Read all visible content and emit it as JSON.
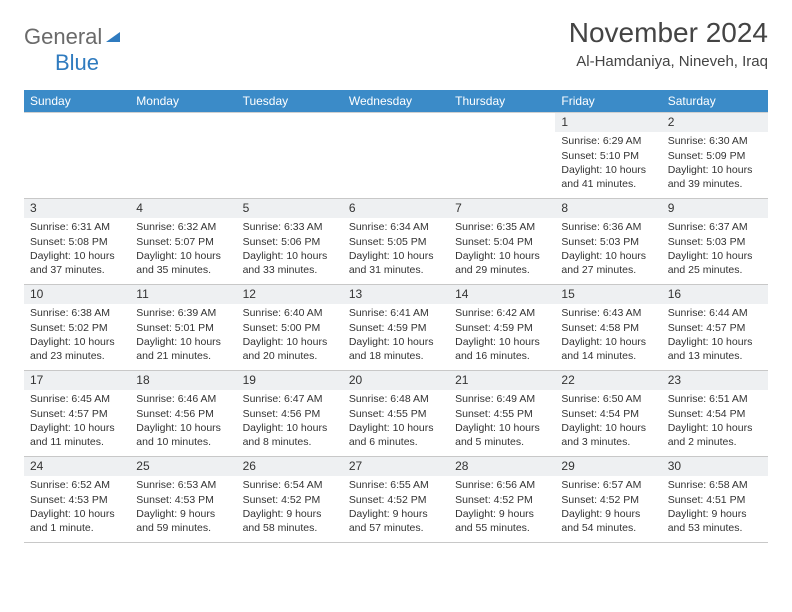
{
  "colors": {
    "header_bg": "#3b8bc8",
    "header_fg": "#ffffff",
    "daynum_bg": "#eef0f2",
    "border": "#c8c8c8",
    "logo_gray": "#6a6a6a",
    "logo_blue": "#2f7bbf",
    "text": "#333333",
    "page_bg": "#ffffff"
  },
  "logo": {
    "part1": "General",
    "part2": "Blue"
  },
  "title": {
    "month": "November 2024",
    "location": "Al-Hamdaniya, Nineveh, Iraq"
  },
  "weekdays": [
    "Sunday",
    "Monday",
    "Tuesday",
    "Wednesday",
    "Thursday",
    "Friday",
    "Saturday"
  ],
  "weeks": [
    [
      {
        "n": "",
        "l1": "",
        "l2": "",
        "l3": "",
        "l4": ""
      },
      {
        "n": "",
        "l1": "",
        "l2": "",
        "l3": "",
        "l4": ""
      },
      {
        "n": "",
        "l1": "",
        "l2": "",
        "l3": "",
        "l4": ""
      },
      {
        "n": "",
        "l1": "",
        "l2": "",
        "l3": "",
        "l4": ""
      },
      {
        "n": "",
        "l1": "",
        "l2": "",
        "l3": "",
        "l4": ""
      },
      {
        "n": "1",
        "l1": "Sunrise: 6:29 AM",
        "l2": "Sunset: 5:10 PM",
        "l3": "Daylight: 10 hours",
        "l4": "and 41 minutes."
      },
      {
        "n": "2",
        "l1": "Sunrise: 6:30 AM",
        "l2": "Sunset: 5:09 PM",
        "l3": "Daylight: 10 hours",
        "l4": "and 39 minutes."
      }
    ],
    [
      {
        "n": "3",
        "l1": "Sunrise: 6:31 AM",
        "l2": "Sunset: 5:08 PM",
        "l3": "Daylight: 10 hours",
        "l4": "and 37 minutes."
      },
      {
        "n": "4",
        "l1": "Sunrise: 6:32 AM",
        "l2": "Sunset: 5:07 PM",
        "l3": "Daylight: 10 hours",
        "l4": "and 35 minutes."
      },
      {
        "n": "5",
        "l1": "Sunrise: 6:33 AM",
        "l2": "Sunset: 5:06 PM",
        "l3": "Daylight: 10 hours",
        "l4": "and 33 minutes."
      },
      {
        "n": "6",
        "l1": "Sunrise: 6:34 AM",
        "l2": "Sunset: 5:05 PM",
        "l3": "Daylight: 10 hours",
        "l4": "and 31 minutes."
      },
      {
        "n": "7",
        "l1": "Sunrise: 6:35 AM",
        "l2": "Sunset: 5:04 PM",
        "l3": "Daylight: 10 hours",
        "l4": "and 29 minutes."
      },
      {
        "n": "8",
        "l1": "Sunrise: 6:36 AM",
        "l2": "Sunset: 5:03 PM",
        "l3": "Daylight: 10 hours",
        "l4": "and 27 minutes."
      },
      {
        "n": "9",
        "l1": "Sunrise: 6:37 AM",
        "l2": "Sunset: 5:03 PM",
        "l3": "Daylight: 10 hours",
        "l4": "and 25 minutes."
      }
    ],
    [
      {
        "n": "10",
        "l1": "Sunrise: 6:38 AM",
        "l2": "Sunset: 5:02 PM",
        "l3": "Daylight: 10 hours",
        "l4": "and 23 minutes."
      },
      {
        "n": "11",
        "l1": "Sunrise: 6:39 AM",
        "l2": "Sunset: 5:01 PM",
        "l3": "Daylight: 10 hours",
        "l4": "and 21 minutes."
      },
      {
        "n": "12",
        "l1": "Sunrise: 6:40 AM",
        "l2": "Sunset: 5:00 PM",
        "l3": "Daylight: 10 hours",
        "l4": "and 20 minutes."
      },
      {
        "n": "13",
        "l1": "Sunrise: 6:41 AM",
        "l2": "Sunset: 4:59 PM",
        "l3": "Daylight: 10 hours",
        "l4": "and 18 minutes."
      },
      {
        "n": "14",
        "l1": "Sunrise: 6:42 AM",
        "l2": "Sunset: 4:59 PM",
        "l3": "Daylight: 10 hours",
        "l4": "and 16 minutes."
      },
      {
        "n": "15",
        "l1": "Sunrise: 6:43 AM",
        "l2": "Sunset: 4:58 PM",
        "l3": "Daylight: 10 hours",
        "l4": "and 14 minutes."
      },
      {
        "n": "16",
        "l1": "Sunrise: 6:44 AM",
        "l2": "Sunset: 4:57 PM",
        "l3": "Daylight: 10 hours",
        "l4": "and 13 minutes."
      }
    ],
    [
      {
        "n": "17",
        "l1": "Sunrise: 6:45 AM",
        "l2": "Sunset: 4:57 PM",
        "l3": "Daylight: 10 hours",
        "l4": "and 11 minutes."
      },
      {
        "n": "18",
        "l1": "Sunrise: 6:46 AM",
        "l2": "Sunset: 4:56 PM",
        "l3": "Daylight: 10 hours",
        "l4": "and 10 minutes."
      },
      {
        "n": "19",
        "l1": "Sunrise: 6:47 AM",
        "l2": "Sunset: 4:56 PM",
        "l3": "Daylight: 10 hours",
        "l4": "and 8 minutes."
      },
      {
        "n": "20",
        "l1": "Sunrise: 6:48 AM",
        "l2": "Sunset: 4:55 PM",
        "l3": "Daylight: 10 hours",
        "l4": "and 6 minutes."
      },
      {
        "n": "21",
        "l1": "Sunrise: 6:49 AM",
        "l2": "Sunset: 4:55 PM",
        "l3": "Daylight: 10 hours",
        "l4": "and 5 minutes."
      },
      {
        "n": "22",
        "l1": "Sunrise: 6:50 AM",
        "l2": "Sunset: 4:54 PM",
        "l3": "Daylight: 10 hours",
        "l4": "and 3 minutes."
      },
      {
        "n": "23",
        "l1": "Sunrise: 6:51 AM",
        "l2": "Sunset: 4:54 PM",
        "l3": "Daylight: 10 hours",
        "l4": "and 2 minutes."
      }
    ],
    [
      {
        "n": "24",
        "l1": "Sunrise: 6:52 AM",
        "l2": "Sunset: 4:53 PM",
        "l3": "Daylight: 10 hours",
        "l4": "and 1 minute."
      },
      {
        "n": "25",
        "l1": "Sunrise: 6:53 AM",
        "l2": "Sunset: 4:53 PM",
        "l3": "Daylight: 9 hours",
        "l4": "and 59 minutes."
      },
      {
        "n": "26",
        "l1": "Sunrise: 6:54 AM",
        "l2": "Sunset: 4:52 PM",
        "l3": "Daylight: 9 hours",
        "l4": "and 58 minutes."
      },
      {
        "n": "27",
        "l1": "Sunrise: 6:55 AM",
        "l2": "Sunset: 4:52 PM",
        "l3": "Daylight: 9 hours",
        "l4": "and 57 minutes."
      },
      {
        "n": "28",
        "l1": "Sunrise: 6:56 AM",
        "l2": "Sunset: 4:52 PM",
        "l3": "Daylight: 9 hours",
        "l4": "and 55 minutes."
      },
      {
        "n": "29",
        "l1": "Sunrise: 6:57 AM",
        "l2": "Sunset: 4:52 PM",
        "l3": "Daylight: 9 hours",
        "l4": "and 54 minutes."
      },
      {
        "n": "30",
        "l1": "Sunrise: 6:58 AM",
        "l2": "Sunset: 4:51 PM",
        "l3": "Daylight: 9 hours",
        "l4": "and 53 minutes."
      }
    ]
  ]
}
